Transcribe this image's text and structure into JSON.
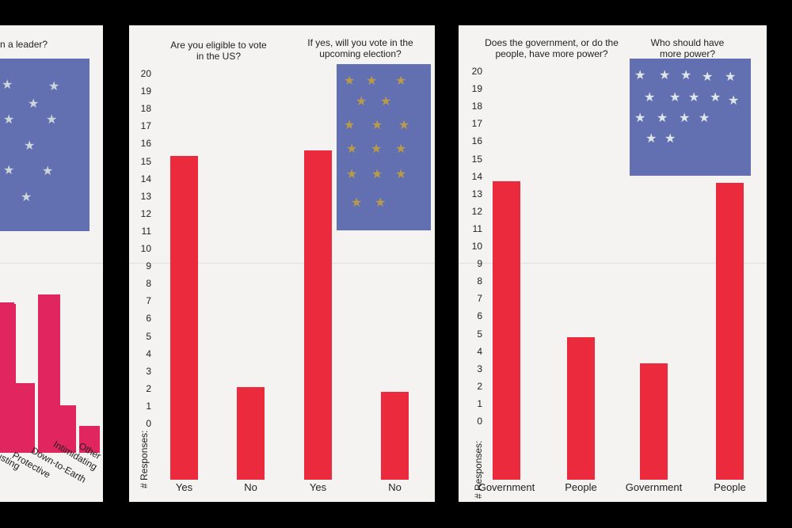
{
  "colors": {
    "bar": "#ec2a3d",
    "bar_left": "#e0255f",
    "flag": "#6270b2",
    "paper": "#f4f3f1",
    "gold": "#b89a4a",
    "silver": "#cdd6da"
  },
  "left_sheet": {
    "question": "n a leader?",
    "labels": [
      "usting",
      "Protective",
      "Down-to-Earth",
      "Intimidating",
      "Other"
    ]
  },
  "chart_data": [
    {
      "type": "bar",
      "title": "Are you eligible to vote in the US?",
      "ylabel": "# Responses:",
      "ylim": [
        0,
        20
      ],
      "categories": [
        "Yes",
        "No"
      ],
      "values": [
        15.3,
        2.1
      ]
    },
    {
      "type": "bar",
      "title": "If yes, will you vote in the upcoming election?",
      "ylabel": "# Responses:",
      "ylim": [
        0,
        20
      ],
      "categories": [
        "Yes",
        "No"
      ],
      "values": [
        15.6,
        1.8
      ]
    },
    {
      "type": "bar",
      "title": "Does the government, or do the people, have more power?",
      "ylabel": "# Responses:",
      "ylim": [
        0,
        20
      ],
      "categories": [
        "Government",
        "People"
      ],
      "values": [
        13.7,
        4.8
      ]
    },
    {
      "type": "bar",
      "title": "Who should have more power?",
      "ylabel": "# Responses:",
      "ylim": [
        0,
        20
      ],
      "categories": [
        "Government",
        "People"
      ],
      "values": [
        3.3,
        13.6
      ]
    }
  ],
  "ticks": [
    "0",
    "1",
    "2",
    "3",
    "4",
    "5",
    "6",
    "7",
    "8",
    "9",
    "10",
    "11",
    "12",
    "13",
    "14",
    "15",
    "16",
    "17",
    "18",
    "19",
    "20"
  ]
}
